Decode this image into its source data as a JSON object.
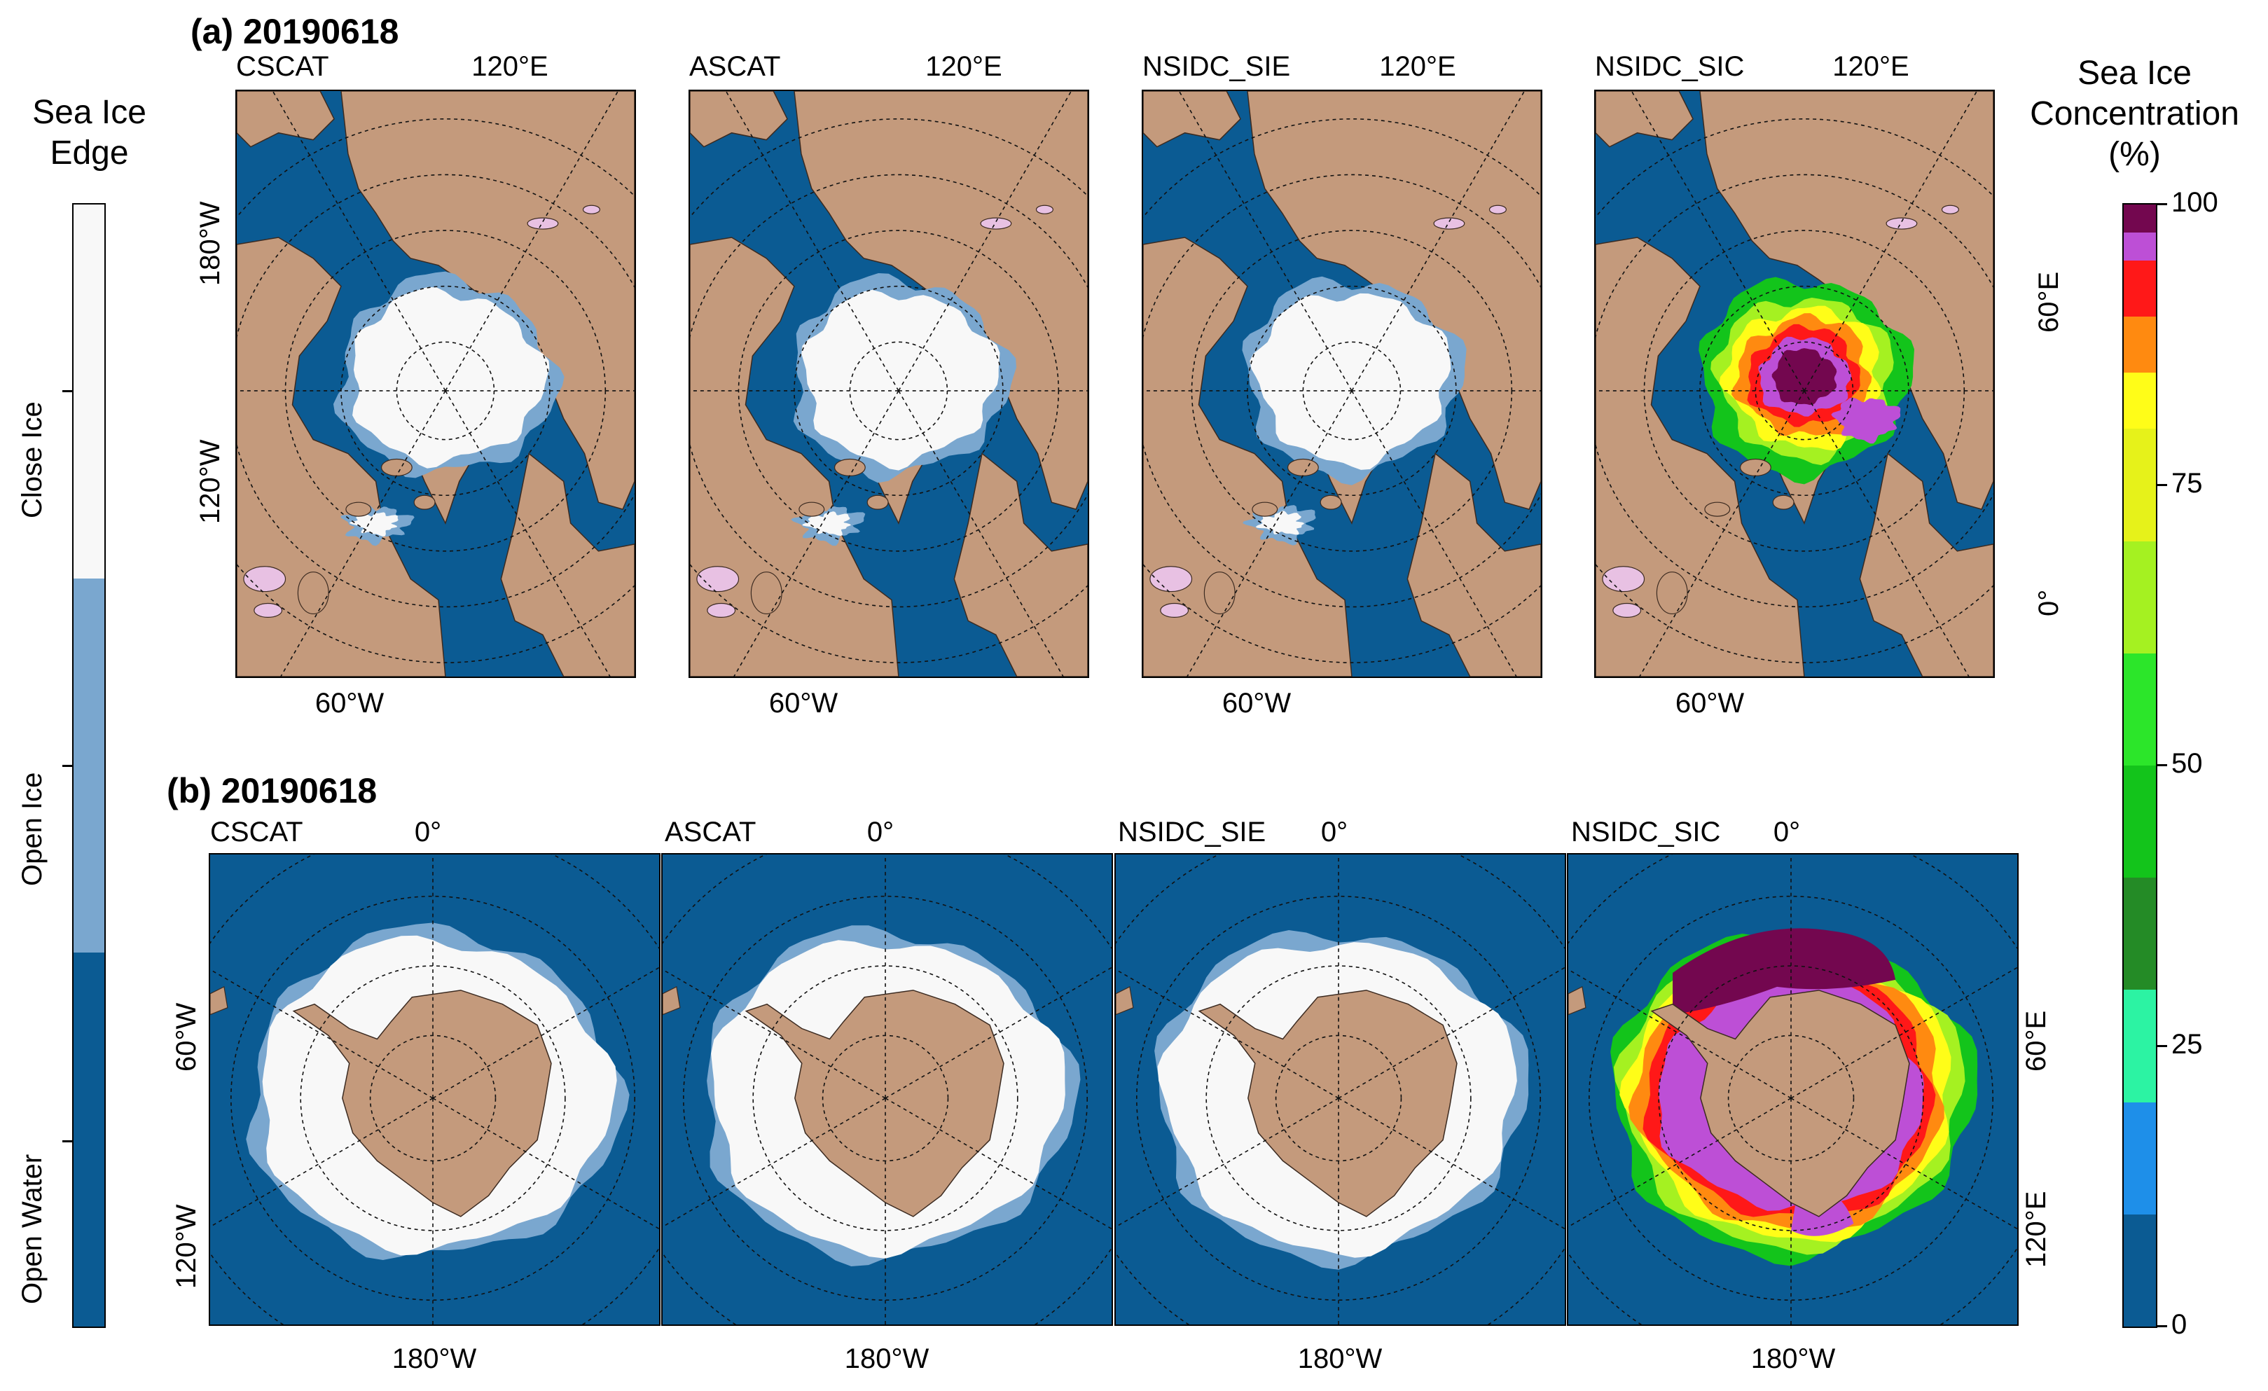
{
  "colors": {
    "open_water": "#0b5b93",
    "open_ice": "#7aa7cf",
    "close_ice": "#f8f8f8",
    "land": "#c49a7c",
    "lake": "#e8c1e3"
  },
  "row_a": {
    "title": "(a) 20190618",
    "top_label": "120°E",
    "bottom_label": "60°W",
    "left_top_label": "180°W",
    "left_bottom_label": "120°W",
    "right_top_label": "60°E",
    "right_bottom_label": "0°",
    "panels": [
      "CSCAT",
      "ASCAT",
      "NSIDC_SIE",
      "NSIDC_SIC"
    ]
  },
  "row_b": {
    "title": "(b) 20190618",
    "top_label": "0°",
    "bottom_label": "180°W",
    "left_top_label": "60°W",
    "left_bottom_label": "120°W",
    "right_top_label": "60°E",
    "right_bottom_label": "120°E",
    "panels": [
      "CSCAT",
      "ASCAT",
      "NSIDC_SIE",
      "NSIDC_SIC"
    ]
  },
  "legend_left": {
    "title_line1": "Sea Ice",
    "title_line2": "Edge",
    "classes": [
      {
        "label": "Close Ice",
        "color": "#f8f8f8"
      },
      {
        "label": "Open Ice",
        "color": "#7aa7cf"
      },
      {
        "label": "Open Water",
        "color": "#0b5b93"
      }
    ]
  },
  "legend_right": {
    "title_line1": "Sea Ice",
    "title_line2": "Concentration",
    "title_line3": "(%)",
    "ticks": [
      "100",
      "75",
      "50",
      "25",
      "0"
    ],
    "min": 0,
    "max": 100,
    "bins": [
      {
        "from": 0,
        "to": 10,
        "color": "#0b5b93"
      },
      {
        "from": 10,
        "to": 20,
        "color": "#1e8fe9"
      },
      {
        "from": 20,
        "to": 30,
        "color": "#2cf3a3"
      },
      {
        "from": 30,
        "to": 40,
        "color": "#248b26"
      },
      {
        "from": 40,
        "to": 50,
        "color": "#13c41b"
      },
      {
        "from": 50,
        "to": 60,
        "color": "#2ce62a"
      },
      {
        "from": 60,
        "to": 70,
        "color": "#a5f121"
      },
      {
        "from": 70,
        "to": 80,
        "color": "#e6f21a"
      },
      {
        "from": 80,
        "to": 85,
        "color": "#fffd18"
      },
      {
        "from": 85,
        "to": 90,
        "color": "#ff8a10"
      },
      {
        "from": 90,
        "to": 95,
        "color": "#ff1818"
      },
      {
        "from": 95,
        "to": 97.5,
        "color": "#bd4fd6"
      },
      {
        "from": 97.5,
        "to": 100,
        "color": "#73074f"
      }
    ]
  }
}
